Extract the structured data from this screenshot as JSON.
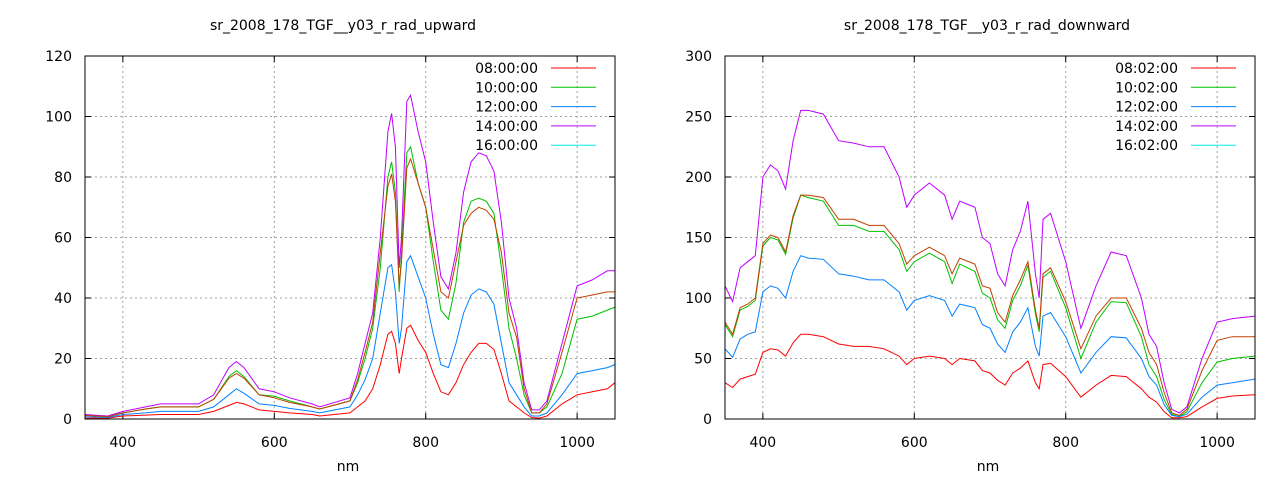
{
  "chart_data": [
    {
      "type": "line",
      "title": "sr_2008_178_TGF__y03_r_rad_upward",
      "xlabel": "nm",
      "ylabel": "",
      "xlim": [
        350,
        1050
      ],
      "ylim": [
        0,
        120
      ],
      "xticks": [
        400,
        600,
        800,
        1000
      ],
      "yticks": [
        0,
        20,
        40,
        60,
        80,
        100,
        120
      ],
      "grid": true,
      "legend_position": "top-right",
      "x": [
        350,
        380,
        400,
        430,
        450,
        500,
        520,
        540,
        550,
        560,
        580,
        600,
        620,
        650,
        660,
        700,
        710,
        720,
        730,
        740,
        750,
        755,
        760,
        765,
        768,
        775,
        780,
        790,
        800,
        810,
        820,
        830,
        840,
        850,
        860,
        870,
        880,
        890,
        900,
        910,
        920,
        930,
        940,
        950,
        960,
        980,
        1000,
        1020,
        1040,
        1050
      ],
      "series": [
        {
          "name": "08:00:00",
          "color": "#ff0000",
          "values": [
            0.3,
            0.3,
            1,
            1.3,
            1.5,
            1.5,
            2.5,
            4.5,
            5.5,
            5,
            3,
            2.5,
            2,
            1.5,
            1,
            2,
            4,
            6,
            10,
            18,
            28,
            29,
            25,
            15,
            20,
            30,
            31,
            26,
            22,
            15,
            9,
            8,
            12,
            18,
            22,
            25,
            25,
            23,
            15,
            6,
            4,
            2,
            0.5,
            0.3,
            1,
            5,
            8,
            9,
            10,
            12
          ]
        },
        {
          "name": "10:00:00",
          "color": "#00c000",
          "values": [
            1.2,
            0.8,
            2,
            3.3,
            4,
            4,
            6.5,
            14,
            16,
            14,
            8,
            7.5,
            6,
            4,
            3.3,
            6,
            12,
            20,
            30,
            50,
            80,
            85,
            75,
            42,
            55,
            88,
            90,
            78,
            70,
            52,
            36,
            33,
            45,
            65,
            72,
            73,
            72,
            68,
            50,
            30,
            20,
            8,
            2,
            2,
            4,
            15,
            33,
            34,
            36,
            37
          ]
        },
        {
          "name": "12:00:00",
          "color": "#0080ff",
          "values": [
            0.8,
            0.5,
            1.5,
            2,
            2.5,
            2.5,
            4,
            8,
            10,
            8.5,
            5,
            4.5,
            3.5,
            2.5,
            2,
            4,
            8,
            13,
            20,
            35,
            50,
            51,
            42,
            25,
            30,
            52,
            54,
            47,
            40,
            28,
            18,
            17,
            25,
            35,
            41,
            43,
            42,
            38,
            25,
            12,
            8,
            4,
            1,
            1,
            2,
            8,
            15,
            16,
            17,
            18
          ]
        },
        {
          "name": "14:00:00",
          "color": "#c000ff",
          "values": [
            1.5,
            1,
            2.5,
            4,
            5,
            5,
            8,
            17,
            19,
            17,
            10,
            9,
            7,
            5,
            4,
            7,
            15,
            25,
            35,
            60,
            95,
            101,
            90,
            50,
            60,
            105,
            107,
            95,
            85,
            65,
            47,
            43,
            55,
            75,
            85,
            88,
            87,
            82,
            65,
            40,
            30,
            12,
            3,
            3,
            6,
            25,
            44,
            46,
            49,
            49
          ]
        },
        {
          "name": "16:00:00",
          "color": "#00eeee",
          "line_color": "#c04000",
          "values": [
            1.2,
            0.8,
            2,
            3.3,
            4,
            4,
            6.5,
            13.5,
            15,
            13.5,
            8,
            7,
            5.5,
            4,
            3.3,
            6,
            13,
            22,
            32,
            55,
            77,
            81,
            72,
            44,
            52,
            83,
            86,
            78,
            70,
            56,
            42,
            40,
            52,
            64,
            68,
            70,
            69,
            66,
            55,
            35,
            27,
            10,
            2,
            2,
            5,
            22,
            40,
            41,
            42,
            42
          ]
        }
      ]
    },
    {
      "type": "line",
      "title": "sr_2008_178_TGF__y03_r_rad_downward",
      "xlabel": "nm",
      "ylabel": "",
      "xlim": [
        350,
        1050
      ],
      "ylim": [
        0,
        300
      ],
      "xticks": [
        400,
        600,
        800,
        1000
      ],
      "yticks": [
        0,
        50,
        100,
        150,
        200,
        250,
        300
      ],
      "grid": true,
      "legend_position": "top-right",
      "x": [
        350,
        360,
        370,
        380,
        390,
        400,
        410,
        420,
        430,
        440,
        450,
        460,
        480,
        500,
        520,
        540,
        560,
        580,
        590,
        600,
        620,
        640,
        650,
        660,
        680,
        690,
        700,
        710,
        720,
        730,
        740,
        750,
        760,
        765,
        770,
        780,
        800,
        820,
        840,
        860,
        880,
        900,
        910,
        920,
        930,
        940,
        950,
        960,
        980,
        1000,
        1020,
        1050
      ],
      "series": [
        {
          "name": "08:02:00",
          "color": "#ff0000",
          "values": [
            30,
            26,
            33,
            35,
            37,
            55,
            58,
            57,
            52,
            63,
            70,
            70,
            68,
            62,
            60,
            60,
            58,
            52,
            45,
            50,
            52,
            50,
            45,
            50,
            48,
            40,
            38,
            32,
            28,
            38,
            42,
            48,
            30,
            25,
            45,
            46,
            35,
            18,
            28,
            36,
            35,
            25,
            18,
            14,
            6,
            1,
            1,
            2,
            10,
            17,
            19,
            20
          ]
        },
        {
          "name": "10:02:00",
          "color": "#00c000",
          "values": [
            78,
            68,
            90,
            93,
            98,
            143,
            150,
            148,
            136,
            166,
            185,
            183,
            180,
            160,
            160,
            155,
            155,
            140,
            122,
            130,
            137,
            130,
            112,
            128,
            122,
            104,
            100,
            82,
            75,
            98,
            110,
            127,
            87,
            72,
            117,
            122,
            92,
            50,
            80,
            97,
            96,
            68,
            45,
            35,
            16,
            4,
            2,
            6,
            30,
            47,
            50,
            52
          ]
        },
        {
          "name": "12:02:00",
          "color": "#0080ff",
          "values": [
            58,
            51,
            66,
            70,
            72,
            105,
            110,
            108,
            100,
            122,
            135,
            133,
            132,
            120,
            118,
            115,
            115,
            105,
            90,
            98,
            102,
            98,
            85,
            95,
            92,
            78,
            75,
            62,
            55,
            72,
            80,
            92,
            60,
            52,
            85,
            88,
            68,
            38,
            55,
            68,
            67,
            50,
            35,
            28,
            12,
            3,
            2,
            4,
            18,
            28,
            30,
            33
          ]
        },
        {
          "name": "14:02:00",
          "color": "#c000ff",
          "values": [
            110,
            97,
            125,
            130,
            135,
            200,
            210,
            205,
            190,
            230,
            255,
            255,
            252,
            230,
            228,
            225,
            225,
            200,
            175,
            185,
            195,
            185,
            165,
            180,
            175,
            150,
            145,
            120,
            110,
            140,
            155,
            180,
            120,
            100,
            165,
            170,
            130,
            75,
            110,
            138,
            135,
            100,
            70,
            60,
            30,
            8,
            5,
            10,
            50,
            80,
            83,
            85
          ]
        },
        {
          "name": "16:02:00",
          "color": "#00eeee",
          "line_color": "#c04000",
          "values": [
            80,
            70,
            92,
            95,
            100,
            145,
            152,
            150,
            138,
            168,
            185,
            185,
            183,
            165,
            165,
            160,
            160,
            145,
            128,
            135,
            142,
            135,
            120,
            133,
            128,
            110,
            108,
            88,
            80,
            102,
            115,
            130,
            90,
            75,
            120,
            125,
            97,
            58,
            85,
            100,
            100,
            75,
            55,
            45,
            22,
            5,
            3,
            8,
            40,
            65,
            68,
            68
          ]
        }
      ]
    }
  ]
}
